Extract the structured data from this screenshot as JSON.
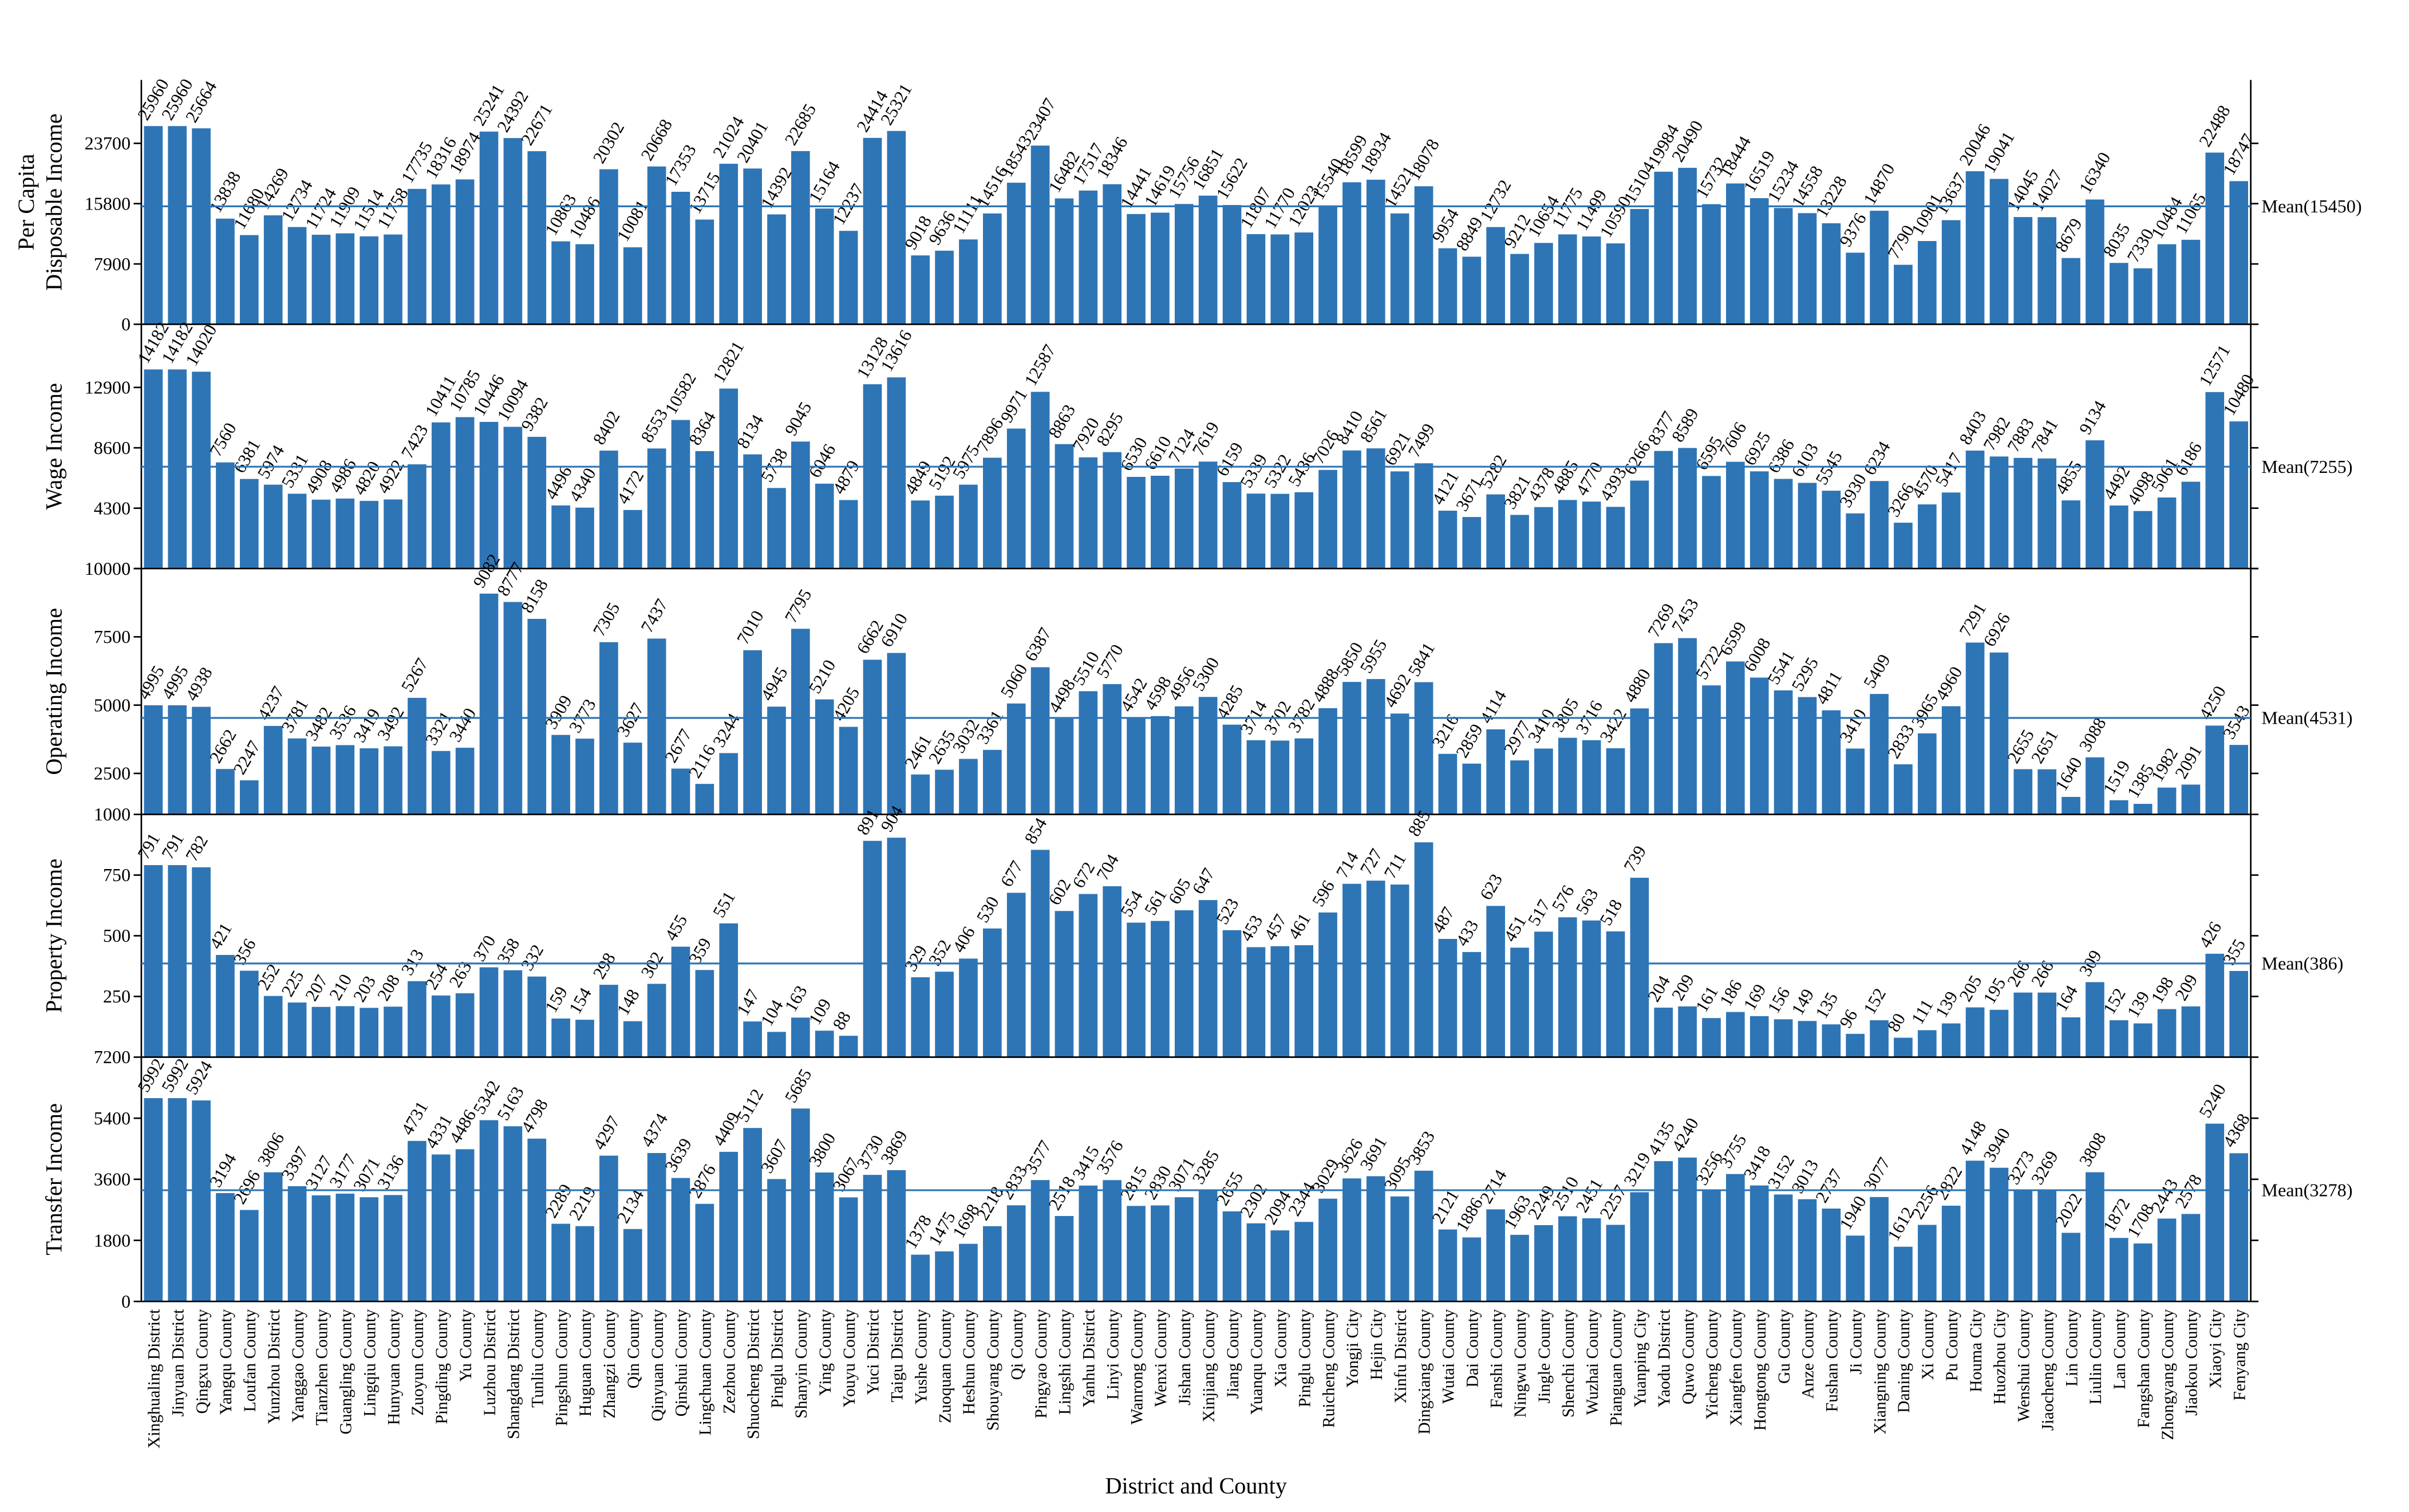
{
  "chart_data": [
    {
      "type": "bar",
      "ylabel": [
        "Per Capita",
        "Disposable Income"
      ],
      "color": "#2e75b6",
      "ylim": [
        0,
        32000
      ],
      "yticks": [
        0,
        7900,
        15800,
        23700
      ],
      "mean": {
        "value": 15450,
        "label": "Mean(15450)"
      },
      "values": [
        25960,
        25960,
        25664,
        13838,
        11680,
        14269,
        12734,
        11724,
        11909,
        11514,
        11758,
        17735,
        18316,
        18974,
        25241,
        24392,
        22671,
        10863,
        10486,
        20302,
        10081,
        20668,
        17353,
        13715,
        21024,
        20401,
        14392,
        22685,
        15164,
        12237,
        24414,
        25321,
        9018,
        9636,
        11111,
        14516,
        18543,
        23407,
        16482,
        17517,
        18346,
        14441,
        14619,
        15756,
        16851,
        15622,
        11807,
        11770,
        12023,
        15540,
        18599,
        18934,
        14521,
        18078,
        9954,
        8849,
        12732,
        9212,
        10654,
        11775,
        11499,
        10590,
        15104,
        19984,
        20490,
        15732,
        18444,
        16519,
        15234,
        14558,
        13228,
        9376,
        14870,
        7790,
        10901,
        13637,
        20046,
        19041,
        14045,
        14027,
        8679,
        16340,
        8035,
        7330,
        10484,
        11065,
        22488,
        18747
      ]
    },
    {
      "type": "bar",
      "ylabel": [
        "Wage Income"
      ],
      "color": "#2e75b6",
      "ylim": [
        0,
        17400
      ],
      "yticks": [
        0,
        4300,
        8600,
        12900
      ],
      "mean": {
        "value": 7255,
        "label": "Mean(7255)"
      },
      "values": [
        14182,
        14182,
        14020,
        7560,
        6381,
        5974,
        5331,
        4908,
        4986,
        4820,
        4922,
        7423,
        10411,
        10785,
        10446,
        10094,
        9382,
        4496,
        4340,
        8402,
        4172,
        8553,
        10582,
        8364,
        12821,
        8134,
        5738,
        9045,
        6046,
        4879,
        13128,
        13616,
        4849,
        5192,
        5975,
        7896,
        9971,
        12587,
        8863,
        7920,
        8295,
        6530,
        6610,
        7124,
        7619,
        6159,
        5339,
        5322,
        5436,
        7026,
        8410,
        8561,
        6921,
        7499,
        4121,
        3671,
        5282,
        3821,
        4378,
        4885,
        4770,
        4393,
        6266,
        8377,
        8589,
        6595,
        7606,
        6925,
        6386,
        6103,
        5545,
        3930,
        6234,
        3266,
        4570,
        5417,
        8403,
        7982,
        7883,
        7841,
        4855,
        9134,
        4492,
        4098,
        5061,
        6186,
        12571,
        10480
      ]
    },
    {
      "type": "bar",
      "ylabel": [
        "Operating Income"
      ],
      "color": "#2e75b6",
      "ylim": [
        1000,
        10000
      ],
      "yticks": [
        1000,
        2500,
        5000,
        7500,
        10000
      ],
      "mean": {
        "value": 4531,
        "label": "Mean(4531)"
      },
      "values": [
        4995,
        4995,
        4938,
        2662,
        2247,
        4237,
        3781,
        3482,
        3536,
        3419,
        3492,
        5267,
        3321,
        3440,
        9082,
        8777,
        8158,
        3909,
        3773,
        7305,
        3627,
        7437,
        2677,
        2116,
        3244,
        7010,
        4945,
        7795,
        5210,
        4205,
        6662,
        6910,
        2461,
        2635,
        3032,
        3361,
        5060,
        6387,
        4498,
        5510,
        5770,
        4542,
        4598,
        4956,
        5300,
        4285,
        3714,
        3702,
        3782,
        4888,
        5850,
        5955,
        4692,
        5841,
        3216,
        2859,
        4114,
        2977,
        3410,
        3805,
        3716,
        3422,
        4880,
        7269,
        7453,
        5722,
        6599,
        6008,
        5541,
        5295,
        4811,
        3410,
        5409,
        2833,
        3965,
        4960,
        7291,
        6926,
        2655,
        2651,
        1640,
        3088,
        1519,
        1385,
        1982,
        2091,
        4250,
        3543
      ]
    },
    {
      "type": "bar",
      "ylabel": [
        "Property Income"
      ],
      "color": "#2e75b6",
      "ylim": [
        0,
        1000
      ],
      "yticks": [
        250,
        500,
        750
      ],
      "mean": {
        "value": 386,
        "label": "Mean(386)"
      },
      "values": [
        791,
        791,
        782,
        421,
        356,
        252,
        225,
        207,
        210,
        203,
        208,
        313,
        254,
        263,
        370,
        358,
        332,
        159,
        154,
        298,
        148,
        302,
        455,
        359,
        551,
        147,
        104,
        163,
        109,
        88,
        891,
        904,
        329,
        352,
        406,
        530,
        677,
        854,
        602,
        672,
        704,
        554,
        561,
        605,
        647,
        523,
        453,
        457,
        461,
        596,
        714,
        727,
        711,
        885,
        487,
        433,
        623,
        451,
        517,
        576,
        563,
        518,
        739,
        204,
        209,
        161,
        186,
        169,
        156,
        149,
        135,
        96,
        152,
        80,
        111,
        139,
        205,
        195,
        266,
        266,
        164,
        309,
        152,
        139,
        198,
        209,
        426,
        355
      ]
    },
    {
      "type": "bar",
      "ylabel": [
        "Transfer Income"
      ],
      "xlabel": "District and County",
      "color": "#2e75b6",
      "ylim": [
        0,
        7200
      ],
      "yticks": [
        0,
        1800,
        3600,
        5400,
        7200
      ],
      "mean": {
        "value": 3278,
        "label": "Mean(3278)"
      },
      "categories": [
        "Xinghualing District",
        "Jinyuan District",
        "Qingxu County",
        "Yangqu County",
        "Loufan County",
        "Yunzhou District",
        "Yanggao County",
        "Tianzhen County",
        "Guangling County",
        "Lingqiu County",
        "Hunyuan County",
        "Zuoyun County",
        "Pingding County",
        "Yu County",
        "Luzhou District",
        "Shangdang District",
        "Tunliu County",
        "Pingshun County",
        "Huguan County",
        "Zhangzi County",
        "Qin County",
        "Qinyuan County",
        "Qinshui County",
        "Lingchuan County",
        "Zezhou County",
        "Shuocheng District",
        "Pinglu District",
        "Shanyin County",
        "Ying County",
        "Youyu County",
        "Yuci District",
        "Taigu District",
        "Yushe County",
        "Zuoquan County",
        "Heshun County",
        "Shouyang County",
        "Qi County",
        "Pingyao County",
        "Lingshi County",
        "Yanhu District",
        "Linyi County",
        "Wanrong County",
        "Wenxi County",
        "Jishan County",
        "Xinjiang County",
        "Jiang County",
        "Yuanqu County",
        "Xia County",
        "Pinglu County",
        "Ruicheng County",
        "Yongji City",
        "Hejin City",
        "Xinfu District",
        "Dingxiang County",
        "Wutai County",
        "Dai County",
        "Fanshi County",
        "Ningwu County",
        "Jingle County",
        "Shenchi County",
        "Wuzhai County",
        "Pianguan County",
        "Yuanping City",
        "Yaodu District",
        "Quwo County",
        "Yicheng County",
        "Xiangfen County",
        "Hongtong County",
        "Gu County",
        "Anze County",
        "Fushan County",
        "Ji County",
        "Xiangning County",
        "Daning County",
        "Xi County",
        "Pu County",
        "Houma City",
        "Huozhou City",
        "Wenshui County",
        "Jiaocheng County",
        "Lin County",
        "Liulin County",
        "Lan County",
        "Fangshan County",
        "Zhongyang County",
        "Jiaokou County",
        "Xiaoyi City",
        "Fenyang City"
      ],
      "values": [
        5992,
        5992,
        5924,
        3194,
        2696,
        3806,
        3397,
        3127,
        3177,
        3071,
        3136,
        4731,
        4331,
        4486,
        5342,
        5163,
        4798,
        2289,
        2219,
        4297,
        2134,
        4374,
        3639,
        2876,
        4409,
        5112,
        3607,
        5685,
        3800,
        3067,
        3730,
        3869,
        1378,
        1475,
        1698,
        2218,
        2833,
        3577,
        2518,
        3415,
        3576,
        2815,
        2830,
        3071,
        3285,
        2655,
        2302,
        2094,
        2344,
        3029,
        3626,
        3691,
        3095,
        3853,
        2121,
        1886,
        2714,
        1963,
        2249,
        2510,
        2451,
        2257,
        3219,
        4135,
        4240,
        3256,
        3755,
        3418,
        3152,
        3013,
        2737,
        1940,
        3077,
        1612,
        2256,
        2822,
        4148,
        3940,
        3273,
        3269,
        2022,
        3808,
        1872,
        1708,
        2443,
        2578,
        5240,
        4368
      ]
    }
  ]
}
